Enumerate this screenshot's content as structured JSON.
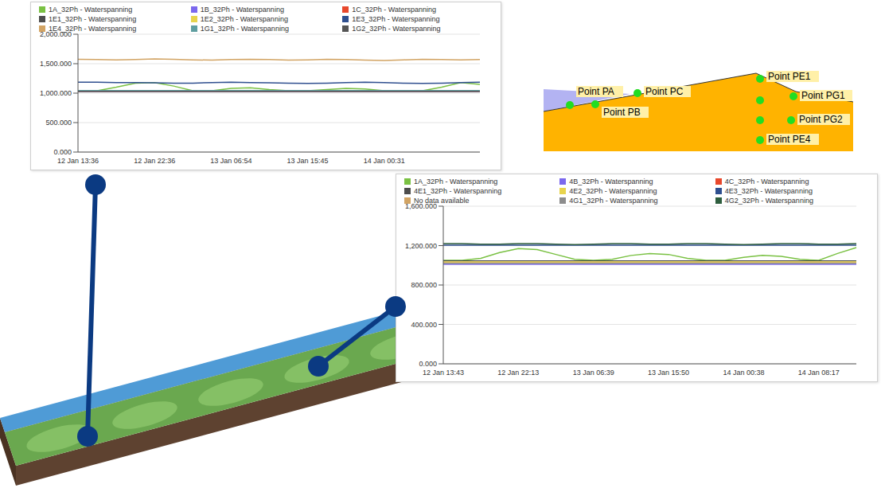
{
  "chart_data": [
    {
      "type": "line",
      "legend": "top",
      "grid": true,
      "categories": [
        "12 Jan 13:36",
        null,
        null,
        null,
        "12 Jan 22:36",
        null,
        null,
        null,
        "13 Jan 06:54",
        null,
        null,
        null,
        "13 Jan 15:45",
        null,
        null,
        null,
        "14 Jan 00:31",
        null,
        null,
        null,
        null,
        null
      ],
      "ylim": [
        0,
        2000
      ],
      "yticks": [
        {
          "value": 0,
          "label": "0.000"
        },
        {
          "value": 500,
          "label": "500.000"
        },
        {
          "value": 1000,
          "label": "1,000.000"
        },
        {
          "value": 1500,
          "label": "1,500.000"
        },
        {
          "value": 2000,
          "label": "2,000.000"
        }
      ],
      "series": [
        {
          "name": "1A_32Ph - Waterspanning",
          "color": "#7ac143",
          "values": [
            1040,
            1040,
            1100,
            1170,
            1180,
            1120,
            1040,
            1040,
            1080,
            1090,
            1060,
            1040,
            1040,
            1060,
            1080,
            1070,
            1040,
            1040,
            1040,
            1100,
            1180,
            1150
          ]
        },
        {
          "name": "1B_32Ph - Waterspanning",
          "color": "#7b68ee",
          "values": [
            1030,
            1030,
            1030,
            1030,
            1030,
            1030,
            1030,
            1030,
            1030,
            1030,
            1030,
            1030,
            1030,
            1030,
            1030,
            1030,
            1030,
            1030,
            1030,
            1030,
            1030,
            1030
          ]
        },
        {
          "name": "1C_32Ph - Waterspanning",
          "color": "#e8482c",
          "values": [
            1035,
            1035,
            1035,
            1035,
            1035,
            1035,
            1035,
            1035,
            1035,
            1035,
            1035,
            1035,
            1035,
            1035,
            1035,
            1035,
            1035,
            1035,
            1035,
            1035,
            1035,
            1035
          ]
        },
        {
          "name": "1E1_32Ph - Waterspanning",
          "color": "#4d4d4d",
          "values": [
            1035,
            1035,
            1035,
            1035,
            1035,
            1035,
            1035,
            1035,
            1035,
            1035,
            1035,
            1035,
            1035,
            1035,
            1035,
            1035,
            1035,
            1035,
            1035,
            1035,
            1035,
            1035
          ]
        },
        {
          "name": "1E2_32Ph - Waterspanning",
          "color": "#e8d44d",
          "values": [
            1040,
            1040,
            1040,
            1040,
            1040,
            1040,
            1040,
            1040,
            1040,
            1040,
            1040,
            1040,
            1040,
            1040,
            1040,
            1040,
            1040,
            1040,
            1040,
            1040,
            1040,
            1040
          ]
        },
        {
          "name": "1E3_32Ph - Waterspanning",
          "color": "#2f4f8f",
          "values": [
            1185,
            1185,
            1180,
            1180,
            1175,
            1170,
            1170,
            1180,
            1185,
            1180,
            1175,
            1170,
            1165,
            1170,
            1180,
            1185,
            1180,
            1170,
            1165,
            1170,
            1180,
            1185
          ]
        },
        {
          "name": "1E4_32Ph - Waterspanning",
          "color": "#d2a464",
          "values": [
            1575,
            1570,
            1565,
            1570,
            1580,
            1575,
            1565,
            1560,
            1570,
            1575,
            1570,
            1560,
            1565,
            1575,
            1570,
            1560,
            1555,
            1565,
            1575,
            1570,
            1565,
            1570
          ]
        },
        {
          "name": "1G1_32Ph - Waterspanning",
          "color": "#5f9ea0",
          "values": [
            1045,
            1045,
            1045,
            1045,
            1045,
            1045,
            1045,
            1045,
            1045,
            1045,
            1045,
            1045,
            1045,
            1045,
            1045,
            1045,
            1045,
            1045,
            1045,
            1045,
            1045,
            1045
          ]
        },
        {
          "name": "1G2_32Ph - Waterspanning",
          "color": "#555555",
          "values": [
            1030,
            1030,
            1030,
            1030,
            1030,
            1030,
            1030,
            1030,
            1030,
            1030,
            1030,
            1030,
            1030,
            1030,
            1030,
            1030,
            1030,
            1030,
            1030,
            1030,
            1030,
            1030
          ]
        }
      ]
    },
    {
      "type": "line",
      "legend": "top",
      "grid": true,
      "categories": [
        "12 Jan 13:43",
        null,
        null,
        null,
        "12 Jan 22:13",
        null,
        null,
        null,
        "13 Jan 06:39",
        null,
        null,
        null,
        "13 Jan 15:50",
        null,
        null,
        null,
        "14 Jan 00:38",
        null,
        null,
        null,
        "14 Jan 08:17",
        null,
        null
      ],
      "ylim": [
        0,
        1600
      ],
      "yticks": [
        {
          "value": 0,
          "label": "0.000"
        },
        {
          "value": 400,
          "label": "400.000"
        },
        {
          "value": 800,
          "label": "800.000"
        },
        {
          "value": 1200,
          "label": "1,200.000"
        },
        {
          "value": 1600,
          "label": "1,600.000"
        }
      ],
      "series": [
        {
          "name": "1A_32Ph - Waterspanning",
          "color": "#7ac143",
          "values": [
            1050,
            1050,
            1070,
            1130,
            1170,
            1160,
            1110,
            1060,
            1050,
            1060,
            1100,
            1120,
            1110,
            1070,
            1050,
            1050,
            1080,
            1100,
            1090,
            1060,
            1050,
            1120,
            1180
          ]
        },
        {
          "name": "4B_32Ph - Waterspanning",
          "color": "#7b68ee",
          "values": [
            1010,
            1010,
            1010,
            1010,
            1010,
            1010,
            1010,
            1010,
            1010,
            1010,
            1010,
            1010,
            1010,
            1010,
            1010,
            1010,
            1010,
            1010,
            1010,
            1010,
            1010,
            1010,
            1010
          ]
        },
        {
          "name": "4C_32Ph - Waterspanning",
          "color": "#e8482c",
          "values": [
            1025,
            1025,
            1025,
            1025,
            1025,
            1025,
            1025,
            1025,
            1025,
            1025,
            1025,
            1025,
            1025,
            1025,
            1025,
            1025,
            1025,
            1025,
            1025,
            1025,
            1025,
            1025,
            1025
          ]
        },
        {
          "name": "4E1_32Ph - Waterspanning",
          "color": "#4d4d4d",
          "values": [
            1045,
            1045,
            1045,
            1045,
            1045,
            1045,
            1045,
            1045,
            1045,
            1045,
            1045,
            1045,
            1045,
            1045,
            1045,
            1045,
            1045,
            1045,
            1045,
            1045,
            1045,
            1045,
            1045
          ]
        },
        {
          "name": "4E2_32Ph - Waterspanning",
          "color": "#e8d44d",
          "values": [
            1035,
            1035,
            1035,
            1035,
            1035,
            1035,
            1035,
            1035,
            1035,
            1035,
            1035,
            1035,
            1035,
            1035,
            1035,
            1035,
            1035,
            1035,
            1035,
            1035,
            1035,
            1035,
            1035
          ]
        },
        {
          "name": "4E3_32Ph - Waterspanning",
          "color": "#2f4f8f",
          "values": [
            1205,
            1205,
            1205,
            1205,
            1205,
            1205,
            1205,
            1205,
            1205,
            1205,
            1205,
            1205,
            1205,
            1205,
            1205,
            1205,
            1205,
            1205,
            1205,
            1205,
            1205,
            1205,
            1205
          ]
        },
        {
          "name": "No data available",
          "color": "#d2a464",
          "values": [
            null,
            null,
            null,
            null,
            null,
            null,
            null,
            null,
            null,
            null,
            null,
            null,
            null,
            null,
            null,
            null,
            null,
            null,
            null,
            null,
            null,
            null,
            null
          ]
        },
        {
          "name": "4G1_32Ph - Waterspanning",
          "color": "#8c8c8c",
          "values": [
            1020,
            1020,
            1020,
            1020,
            1020,
            1020,
            1020,
            1020,
            1020,
            1020,
            1020,
            1020,
            1020,
            1020,
            1020,
            1020,
            1020,
            1020,
            1020,
            1020,
            1020,
            1020,
            1020
          ]
        },
        {
          "name": "4G2_32Ph - Waterspanning",
          "color": "#2e5e3e",
          "values": [
            1220,
            1220,
            1215,
            1215,
            1220,
            1220,
            1215,
            1210,
            1215,
            1220,
            1220,
            1215,
            1215,
            1220,
            1220,
            1215,
            1210,
            1215,
            1220,
            1220,
            1215,
            1215,
            1220
          ]
        }
      ]
    }
  ],
  "cross_section": {
    "points": [
      "Point PA",
      "Point PB",
      "Point PC",
      "Point PE1",
      "Point PG1",
      "Point PG2",
      "Point PE4"
    ]
  }
}
